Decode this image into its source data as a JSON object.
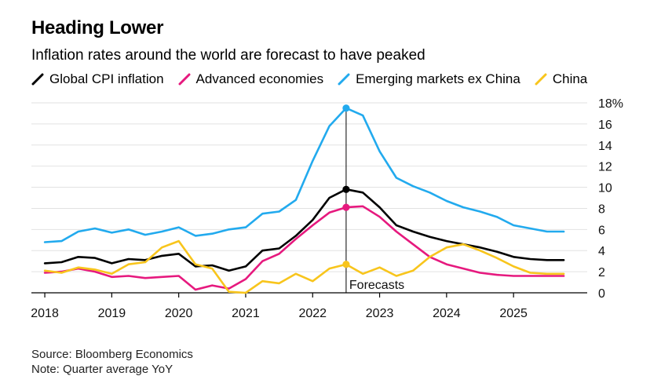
{
  "header": {
    "title": "Heading Lower",
    "subtitle": "Inflation rates around the world are forecast to have peaked"
  },
  "footer": {
    "source": "Source: Bloomberg Economics",
    "note": "Note: Quarter average YoY"
  },
  "chart_data": {
    "type": "line",
    "title": "Heading Lower",
    "subtitle": "Inflation rates around the world are forecast to have peaked",
    "xlabel": "",
    "ylabel": "",
    "x": [
      2018.0,
      2018.25,
      2018.5,
      2018.75,
      2019.0,
      2019.25,
      2019.5,
      2019.75,
      2020.0,
      2020.25,
      2020.5,
      2020.75,
      2021.0,
      2021.25,
      2021.5,
      2021.75,
      2022.0,
      2022.25,
      2022.5,
      2022.75,
      2023.0,
      2023.25,
      2023.5,
      2023.75,
      2024.0,
      2024.25,
      2024.5,
      2024.75,
      2025.0,
      2025.25,
      2025.5,
      2025.75
    ],
    "xlim": [
      2017.8,
      2026.1
    ],
    "ylim": [
      0,
      18
    ],
    "x_ticks": [
      2018,
      2019,
      2020,
      2021,
      2022,
      2023,
      2024,
      2025
    ],
    "x_tick_labels": [
      "2018",
      "2019",
      "2020",
      "2021",
      "2022",
      "2023",
      "2024",
      "2025"
    ],
    "y_ticks": [
      0,
      2,
      4,
      6,
      8,
      10,
      12,
      14,
      16,
      18
    ],
    "y_tick_labels": [
      "0",
      "2",
      "4",
      "6",
      "8",
      "10",
      "12",
      "14",
      "16",
      "18%"
    ],
    "y_axis_side": "right",
    "grid": true,
    "legend_position": "top",
    "series": [
      {
        "name": "Global CPI inflation",
        "color": "#000000",
        "values": [
          2.8,
          2.9,
          3.4,
          3.3,
          2.8,
          3.2,
          3.1,
          3.5,
          3.7,
          2.5,
          2.6,
          2.1,
          2.5,
          4.0,
          4.2,
          5.4,
          6.9,
          9.0,
          9.8,
          9.5,
          8.1,
          6.4,
          5.8,
          5.3,
          4.9,
          4.6,
          4.3,
          3.9,
          3.4,
          3.2,
          3.1,
          3.1
        ]
      },
      {
        "name": "Advanced economies",
        "color": "#e6197e",
        "values": [
          1.9,
          2.0,
          2.3,
          2.0,
          1.5,
          1.6,
          1.4,
          1.5,
          1.6,
          0.3,
          0.7,
          0.4,
          1.3,
          3.0,
          3.7,
          5.1,
          6.4,
          7.6,
          8.1,
          8.2,
          7.2,
          5.8,
          4.6,
          3.4,
          2.7,
          2.3,
          1.9,
          1.7,
          1.6,
          1.6,
          1.6,
          1.6
        ]
      },
      {
        "name": "Emerging markets ex China",
        "color": "#22aaee",
        "values": [
          4.8,
          4.9,
          5.8,
          6.1,
          5.7,
          6.0,
          5.5,
          5.8,
          6.2,
          5.4,
          5.6,
          6.0,
          6.2,
          7.5,
          7.7,
          8.8,
          12.5,
          15.8,
          17.5,
          16.8,
          13.4,
          10.9,
          10.1,
          9.5,
          8.7,
          8.1,
          7.7,
          7.2,
          6.4,
          6.1,
          5.8,
          5.8
        ]
      },
      {
        "name": "China",
        "color": "#f8c51c",
        "values": [
          2.1,
          1.9,
          2.4,
          2.2,
          1.8,
          2.7,
          2.9,
          4.3,
          4.9,
          2.7,
          2.3,
          0.1,
          0.0,
          1.1,
          0.9,
          1.8,
          1.1,
          2.3,
          2.7,
          1.8,
          2.4,
          1.6,
          2.1,
          3.4,
          4.3,
          4.6,
          4.0,
          3.3,
          2.5,
          1.9,
          1.8,
          1.8
        ]
      }
    ],
    "markers": [
      {
        "series": "Global CPI inflation",
        "x": 2022.5,
        "y": 9.8
      },
      {
        "series": "Advanced economies",
        "x": 2022.5,
        "y": 8.1
      },
      {
        "series": "Emerging markets ex China",
        "x": 2022.5,
        "y": 17.5
      },
      {
        "series": "China",
        "x": 2022.5,
        "y": 2.7
      }
    ],
    "annotations": [
      {
        "text": "Forecasts",
        "x": 2022.5,
        "type": "vertical-line"
      }
    ]
  }
}
